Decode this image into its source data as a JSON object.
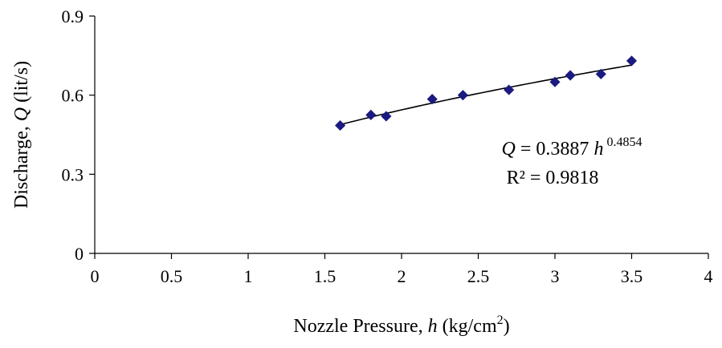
{
  "chart_data": {
    "type": "scatter",
    "title": "",
    "xlabel": {
      "prefix": "Nozzle Pressure,  ",
      "variable": "h",
      "unit_open": " (kg/cm",
      "unit_sup": "2",
      "unit_close": ")"
    },
    "ylabel": {
      "prefix": "Discharge,  ",
      "variable": "Q",
      "unit": " (lit/s)"
    },
    "xlim": [
      0,
      4
    ],
    "ylim": [
      0,
      0.9
    ],
    "x_ticks": [
      0,
      0.5,
      1,
      1.5,
      2,
      2.5,
      3,
      3.5,
      4
    ],
    "x_tick_labels": [
      "0",
      "0.5",
      "1",
      "1.5",
      "2",
      "2.5",
      "3",
      "3.5",
      "4"
    ],
    "y_ticks": [
      0,
      0.3,
      0.6,
      0.9
    ],
    "y_tick_labels": [
      "0",
      "0.3",
      "0.6",
      "0.9"
    ],
    "grid": false,
    "marker_color": "#1a1a80",
    "series": [
      {
        "x": [
          1.6,
          1.8,
          1.9,
          2.2,
          2.4,
          2.7,
          3.0,
          3.1,
          3.3,
          3.5
        ],
        "y": [
          0.485,
          0.525,
          0.52,
          0.585,
          0.6,
          0.62,
          0.65,
          0.675,
          0.68,
          0.73
        ]
      }
    ],
    "trendline": {
      "type": "power",
      "coefficient": 0.3887,
      "exponent": 0.4854,
      "x_range": [
        1.6,
        3.5
      ],
      "color": "#000000"
    },
    "annotation": {
      "eq_lhs": "Q",
      "eq_mid": " = 0.3887 ",
      "eq_var": "h",
      "eq_exp": " 0.4854",
      "r2": "R² = 0.9818"
    }
  }
}
